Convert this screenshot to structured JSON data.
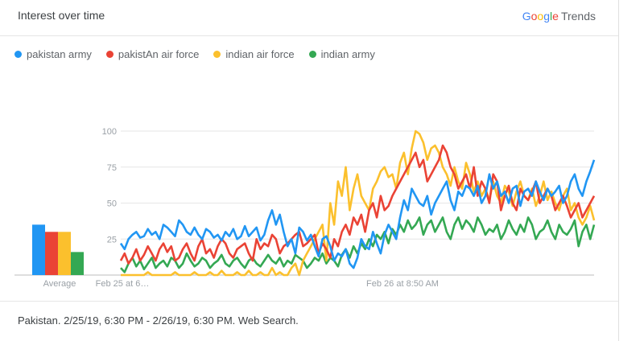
{
  "header": {
    "title": "Interest over time",
    "brand_logo": "Google",
    "brand_product": "Trends"
  },
  "colors": {
    "pakistan_army": "#2196f3",
    "pakistan_air_force": "#ea4335",
    "indian_air_force": "#fbc02d",
    "indian_army": "#34a853"
  },
  "footer": {
    "text": "Pakistan. 2/25/19, 6:30 PM - 2/26/19, 6:30 PM. Web Search."
  },
  "chart_data": {
    "type": "line",
    "title": "",
    "ylim": [
      0,
      100
    ],
    "yticks": [
      25,
      50,
      75,
      100
    ],
    "x_tick_labels": [
      "Feb 25 at 6…",
      "Feb 26 at 8:50 AM"
    ],
    "grid": true,
    "legend_position": "top-left",
    "average_label": "Average",
    "averages": [
      {
        "name": "pakistan army",
        "value": 35
      },
      {
        "name": "pakistAn air force",
        "value": 30
      },
      {
        "name": "indian air force",
        "value": 30
      },
      {
        "name": "indian army",
        "value": 16
      }
    ],
    "series": [
      {
        "name": "pakistan army",
        "key": "pakistan_army",
        "values": [
          22,
          18,
          25,
          28,
          30,
          26,
          27,
          32,
          28,
          30,
          25,
          35,
          33,
          30,
          27,
          38,
          35,
          30,
          28,
          33,
          28,
          25,
          32,
          30,
          26,
          28,
          24,
          30,
          27,
          32,
          25,
          27,
          34,
          27,
          30,
          33,
          24,
          28,
          38,
          45,
          35,
          42,
          30,
          20,
          25,
          15,
          33,
          30,
          24,
          28,
          20,
          13,
          25,
          27,
          20,
          10,
          15,
          13,
          18,
          8,
          5,
          12,
          25,
          20,
          18,
          30,
          22,
          15,
          28,
          35,
          30,
          25,
          40,
          52,
          45,
          60,
          55,
          50,
          48,
          55,
          42,
          50,
          55,
          60,
          65,
          52,
          45,
          58,
          55,
          62,
          60,
          55,
          62,
          50,
          55,
          70,
          60,
          65,
          55,
          58,
          50,
          60,
          62,
          48,
          58,
          60,
          55,
          65,
          58,
          52,
          60,
          55,
          58,
          62,
          50,
          55,
          65,
          70,
          60,
          55,
          65,
          72,
          80
        ]
      },
      {
        "name": "pakistAn air force",
        "key": "pakistan_air_force",
        "values": [
          10,
          15,
          8,
          12,
          18,
          10,
          14,
          20,
          15,
          10,
          18,
          22,
          16,
          20,
          10,
          12,
          18,
          22,
          15,
          10,
          20,
          25,
          15,
          18,
          12,
          20,
          25,
          22,
          15,
          12,
          18,
          20,
          22,
          15,
          10,
          25,
          18,
          22,
          20,
          28,
          25,
          15,
          20,
          22,
          25,
          28,
          30,
          20,
          22,
          25,
          28,
          15,
          22,
          18,
          12,
          25,
          20,
          30,
          35,
          28,
          40,
          35,
          42,
          30,
          45,
          50,
          40,
          55,
          45,
          48,
          55,
          60,
          65,
          70,
          75,
          80,
          85,
          75,
          80,
          65,
          70,
          75,
          80,
          90,
          85,
          75,
          70,
          60,
          65,
          70,
          60,
          75,
          55,
          65,
          60,
          50,
          70,
          65,
          45,
          55,
          62,
          50,
          45,
          60,
          55,
          52,
          58,
          65,
          50,
          55,
          60,
          55,
          45,
          50,
          55,
          48,
          40,
          45,
          50,
          40,
          45,
          50,
          55
        ]
      },
      {
        "name": "indian air force",
        "key": "indian_air_force",
        "values": [
          0,
          0,
          0,
          0,
          0,
          0,
          0,
          2,
          0,
          0,
          0,
          0,
          0,
          0,
          2,
          0,
          0,
          0,
          0,
          2,
          0,
          0,
          0,
          2,
          0,
          0,
          3,
          0,
          0,
          0,
          2,
          0,
          0,
          3,
          0,
          0,
          2,
          0,
          0,
          5,
          0,
          2,
          0,
          0,
          5,
          8,
          0,
          10,
          15,
          20,
          25,
          30,
          35,
          10,
          50,
          35,
          65,
          55,
          75,
          45,
          60,
          70,
          55,
          50,
          45,
          60,
          65,
          72,
          75,
          68,
          70,
          60,
          78,
          85,
          70,
          88,
          100,
          98,
          92,
          80,
          88,
          90,
          85,
          75,
          70,
          62,
          75,
          65,
          60,
          78,
          70,
          58,
          65,
          55,
          60,
          52,
          65,
          55,
          50,
          62,
          58,
          48,
          58,
          65,
          55,
          52,
          60,
          48,
          55,
          65,
          52,
          58,
          50,
          45,
          55,
          60,
          45,
          50,
          40,
          35,
          40,
          48,
          38
        ]
      },
      {
        "name": "indian army",
        "key": "indian_army",
        "values": [
          5,
          2,
          8,
          12,
          6,
          10,
          4,
          8,
          12,
          5,
          8,
          10,
          6,
          12,
          10,
          5,
          8,
          15,
          10,
          6,
          8,
          12,
          10,
          5,
          8,
          10,
          14,
          8,
          6,
          10,
          12,
          8,
          5,
          10,
          12,
          8,
          6,
          10,
          14,
          10,
          8,
          12,
          6,
          10,
          8,
          14,
          12,
          10,
          5,
          8,
          12,
          10,
          15,
          8,
          12,
          10,
          6,
          14,
          18,
          12,
          20,
          15,
          22,
          18,
          25,
          20,
          28,
          25,
          30,
          22,
          32,
          28,
          35,
          30,
          38,
          32,
          35,
          40,
          28,
          35,
          38,
          30,
          35,
          40,
          30,
          25,
          35,
          40,
          32,
          38,
          35,
          30,
          40,
          35,
          28,
          32,
          30,
          35,
          25,
          30,
          38,
          32,
          28,
          35,
          30,
          40,
          35,
          25,
          30,
          32,
          38,
          30,
          25,
          35,
          30,
          28,
          32,
          38,
          20,
          30,
          35,
          25,
          35
        ]
      }
    ]
  }
}
